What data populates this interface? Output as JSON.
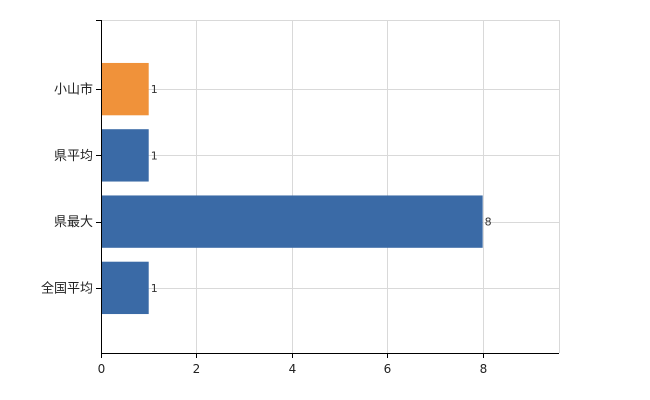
{
  "chart_data": {
    "type": "bar",
    "orientation": "horizontal",
    "title": "",
    "xlabel": "",
    "ylabel": "",
    "categories": [
      "小山市",
      "県平均",
      "県最大",
      "全国平均"
    ],
    "values": [
      1,
      1,
      8,
      1
    ],
    "value_labels": [
      "1",
      "1",
      "8",
      "1"
    ],
    "x_ticks": [
      0,
      2,
      4,
      6,
      8
    ],
    "x_tick_labels": [
      "0",
      "2",
      "4",
      "6",
      "8"
    ],
    "xlim": [
      0,
      9.6
    ],
    "grid": true,
    "legend": "none",
    "colors": {
      "highlight": "#f0923a",
      "default": "#3a6aa6"
    },
    "highlight_index": 0
  }
}
